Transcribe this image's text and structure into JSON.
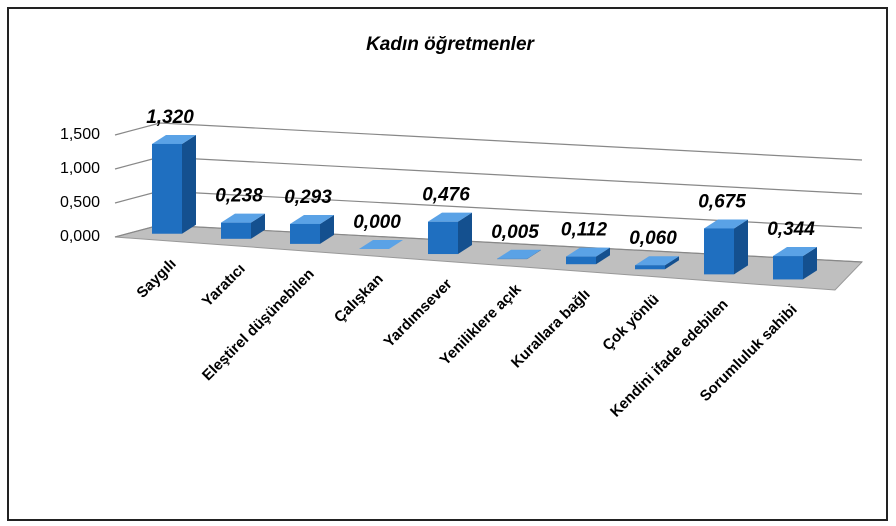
{
  "chart_data": {
    "type": "bar3d",
    "title": "Kadın öğretmenler",
    "categories": [
      "Saygılı",
      "Yaratıcı",
      "Eleştirel düşünebilen",
      "Çalışkan",
      "Yardımsever",
      "Yeniliklere açık",
      "Kurallara bağlı",
      "Çok yönlü",
      "Kendini ifade edebilen",
      "Sorumluluk sahibi"
    ],
    "values": [
      1.32,
      0.238,
      0.293,
      0,
      0.476,
      0.005,
      0.112,
      0.06,
      0.675,
      0.344
    ],
    "value_labels": [
      "1,320",
      "0,238",
      "0,293",
      "0,000",
      "0,476",
      "0,005",
      "0,112",
      "0,060",
      "0,675",
      "0,344"
    ],
    "color": "#1f6fc0",
    "ylim": [
      0,
      1.5
    ],
    "yticks": [
      {
        "value": 0,
        "label": "0,000"
      },
      {
        "value": 0.5,
        "label": "0,500"
      },
      {
        "value": 1,
        "label": "1,000"
      },
      {
        "value": 1.5,
        "label": "1,500"
      }
    ],
    "grid": true
  }
}
